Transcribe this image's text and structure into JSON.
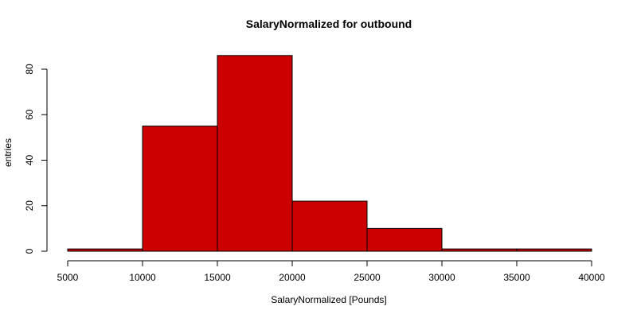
{
  "chart_data": {
    "type": "bar",
    "title": "SalaryNormalized for outbound",
    "xlabel": "SalaryNormalized [Pounds]",
    "ylabel": "entries",
    "bins": [
      {
        "x0": 5000,
        "x1": 10000,
        "count": 1
      },
      {
        "x0": 10000,
        "x1": 15000,
        "count": 55
      },
      {
        "x0": 15000,
        "x1": 20000,
        "count": 86
      },
      {
        "x0": 20000,
        "x1": 25000,
        "count": 22
      },
      {
        "x0": 25000,
        "x1": 30000,
        "count": 10
      },
      {
        "x0": 30000,
        "x1": 35000,
        "count": 1
      },
      {
        "x0": 35000,
        "x1": 40000,
        "count": 1
      }
    ],
    "xlim": [
      5000,
      40000
    ],
    "ylim": [
      0,
      86
    ],
    "x_ticks": [
      5000,
      10000,
      15000,
      20000,
      25000,
      30000,
      35000,
      40000
    ],
    "y_ticks": [
      0,
      20,
      40,
      60,
      80
    ],
    "bar_color": "#cc0000",
    "grid": false
  }
}
